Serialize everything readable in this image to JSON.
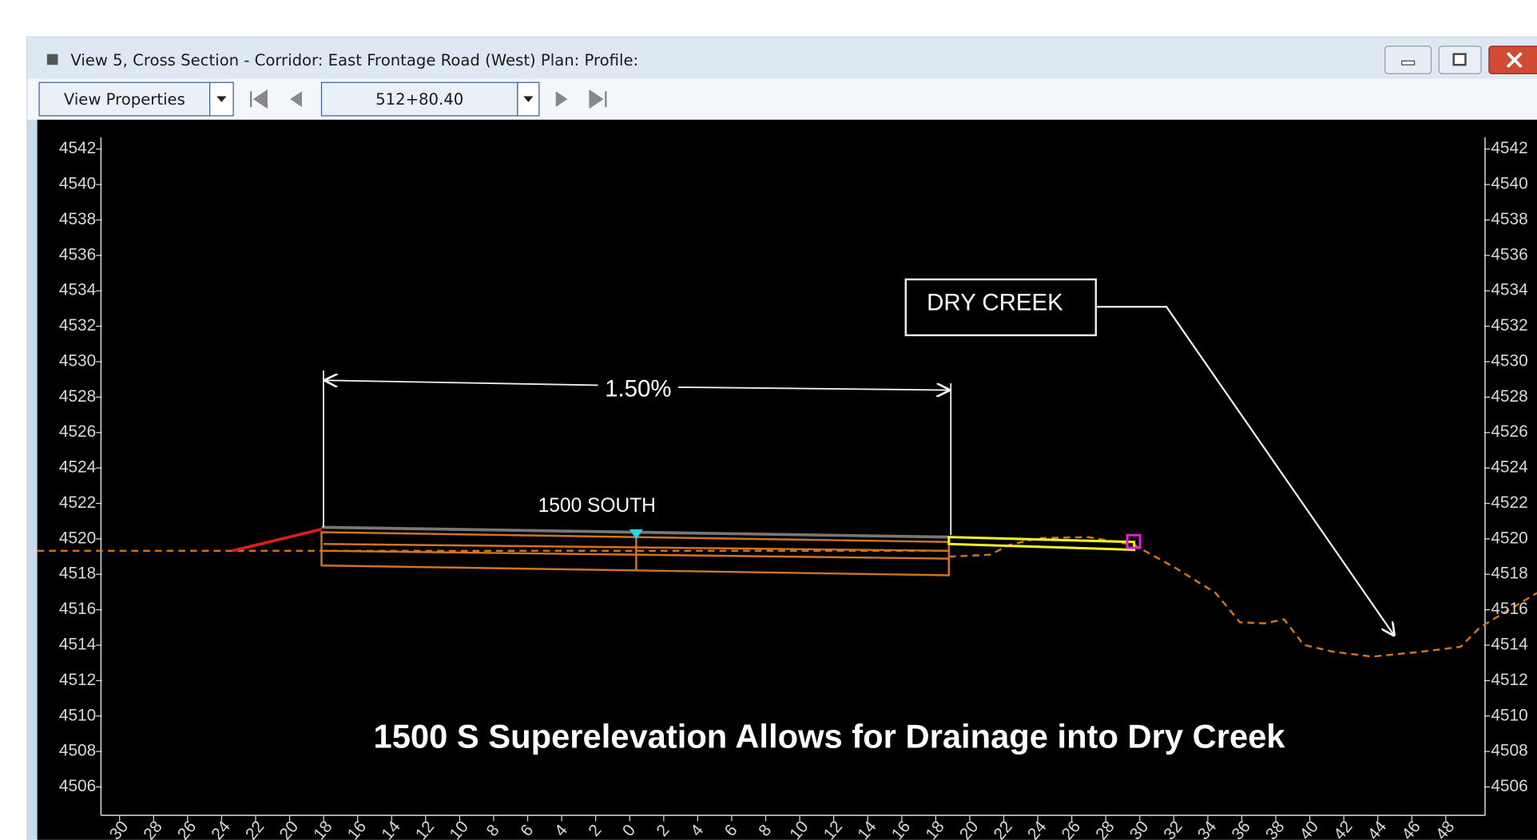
{
  "window": {
    "title": "View 5, Cross Section - Corridor: East Frontage Road (West) Plan:  Profile:"
  },
  "toolbar": {
    "view_properties": "View Properties",
    "station": "512+80.40"
  },
  "view": {
    "elevations": [
      4542,
      4540,
      4538,
      4536,
      4534,
      4532,
      4530,
      4528,
      4526,
      4524,
      4522,
      4520,
      4518,
      4516,
      4514,
      4512,
      4510,
      4508,
      4506
    ],
    "offsets": [
      30,
      28,
      26,
      24,
      22,
      20,
      18,
      16,
      14,
      12,
      10,
      8,
      6,
      4,
      2,
      0,
      2,
      4,
      6,
      8,
      10,
      12,
      14,
      16,
      18,
      20,
      22,
      24,
      26,
      28,
      30,
      32,
      34,
      36,
      38,
      40,
      42,
      44,
      46,
      48
    ],
    "annotations": {
      "grade": "1.50%",
      "road": "1500 SOUTH",
      "creek": "DRY CREEK"
    },
    "caption": "1500 S Superelevation Allows for Drainage into Dry Creek"
  }
}
